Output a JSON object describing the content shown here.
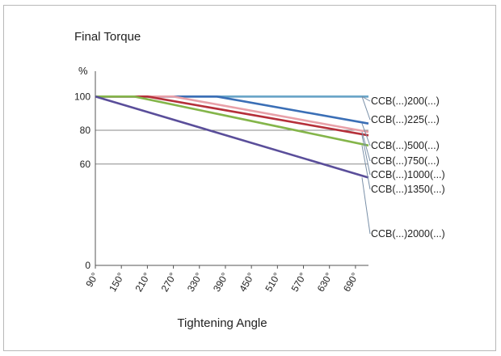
{
  "chart_data": {
    "type": "line",
    "title": "Final Torque",
    "xlabel": "Tightening Angle",
    "ylabel": "%",
    "x": [
      90,
      150,
      210,
      270,
      330,
      390,
      450,
      510,
      570,
      630,
      690
    ],
    "x_tick_labels": [
      "90°",
      "150°",
      "210°",
      "270°",
      "330°",
      "390°",
      "450°",
      "510°",
      "570°",
      "630°",
      "690°"
    ],
    "xlim": [
      90,
      720
    ],
    "ylim": [
      0,
      115
    ],
    "y_ticks": [
      0,
      60,
      80,
      100
    ],
    "y_tick_labels": [
      "0",
      "60",
      "80",
      "100"
    ],
    "grid": true,
    "legend_position": "right, labels at line ends",
    "series": [
      {
        "name": "CCB(...)200(...)",
        "color": "#8c84bd",
        "points": [
          [
            90,
            100
          ],
          [
            720,
            100
          ]
        ]
      },
      {
        "name": "CCB(...)225(...)",
        "color": "#6aa6c8",
        "points": [
          [
            90,
            100
          ],
          [
            720,
            100
          ]
        ]
      },
      {
        "name": "CCB(...)500(...)",
        "color": "#3b6fb6",
        "points": [
          [
            90,
            100
          ],
          [
            370,
            100
          ],
          [
            720,
            84
          ]
        ]
      },
      {
        "name": "CCB(...)750(...)",
        "color": "#e8a0a8",
        "points": [
          [
            90,
            100
          ],
          [
            270,
            100
          ],
          [
            720,
            79
          ]
        ]
      },
      {
        "name": "CCB(...)1000(...)",
        "color": "#b5303a",
        "points": [
          [
            90,
            100
          ],
          [
            210,
            100
          ],
          [
            720,
            77
          ]
        ]
      },
      {
        "name": "CCB(...)1350(...)",
        "color": "#84b54a",
        "points": [
          [
            90,
            100
          ],
          [
            180,
            100
          ],
          [
            720,
            71
          ]
        ]
      },
      {
        "name": "CCB(...)2000(...)",
        "color": "#5a4e9a",
        "points": [
          [
            90,
            100
          ],
          [
            720,
            52
          ]
        ]
      }
    ]
  }
}
